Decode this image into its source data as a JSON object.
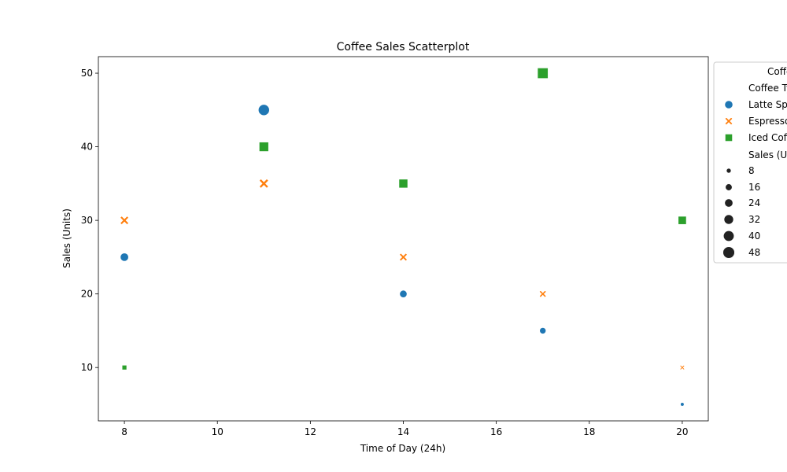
{
  "chart_data": {
    "type": "scatter",
    "title": "Coffee Sales Scatterplot",
    "xlabel": "Time of Day (24h)",
    "ylabel": "Sales (Units)",
    "xlim": [
      7.44,
      20.56
    ],
    "ylim": [
      2.75,
      52.25
    ],
    "x_ticks": [
      8,
      10,
      12,
      14,
      16,
      18,
      20
    ],
    "y_ticks": [
      10,
      20,
      30,
      40,
      50
    ],
    "grid": false,
    "legend_position": "outside-right",
    "legend_title": "Coffee Type",
    "legend_hue_title": "Coffee Type",
    "legend_size_title": "Sales (Units)",
    "legend_sizes": [
      8,
      16,
      24,
      32,
      40,
      48
    ],
    "size_range": [
      5,
      50
    ],
    "series": [
      {
        "name": "Latte Special",
        "marker": "circle",
        "color": "#1f77b4",
        "x": [
          8,
          11,
          14,
          17,
          20
        ],
        "y": [
          25,
          45,
          20,
          15,
          5
        ]
      },
      {
        "name": "Espresso Blend",
        "marker": "x",
        "color": "#ff7f0e",
        "x": [
          8,
          11,
          14,
          17,
          20
        ],
        "y": [
          30,
          35,
          25,
          20,
          10
        ]
      },
      {
        "name": "Iced Coffee",
        "marker": "square",
        "color": "#2ca02c",
        "x": [
          8,
          11,
          14,
          17,
          20
        ],
        "y": [
          10,
          40,
          35,
          50,
          30
        ]
      }
    ]
  }
}
